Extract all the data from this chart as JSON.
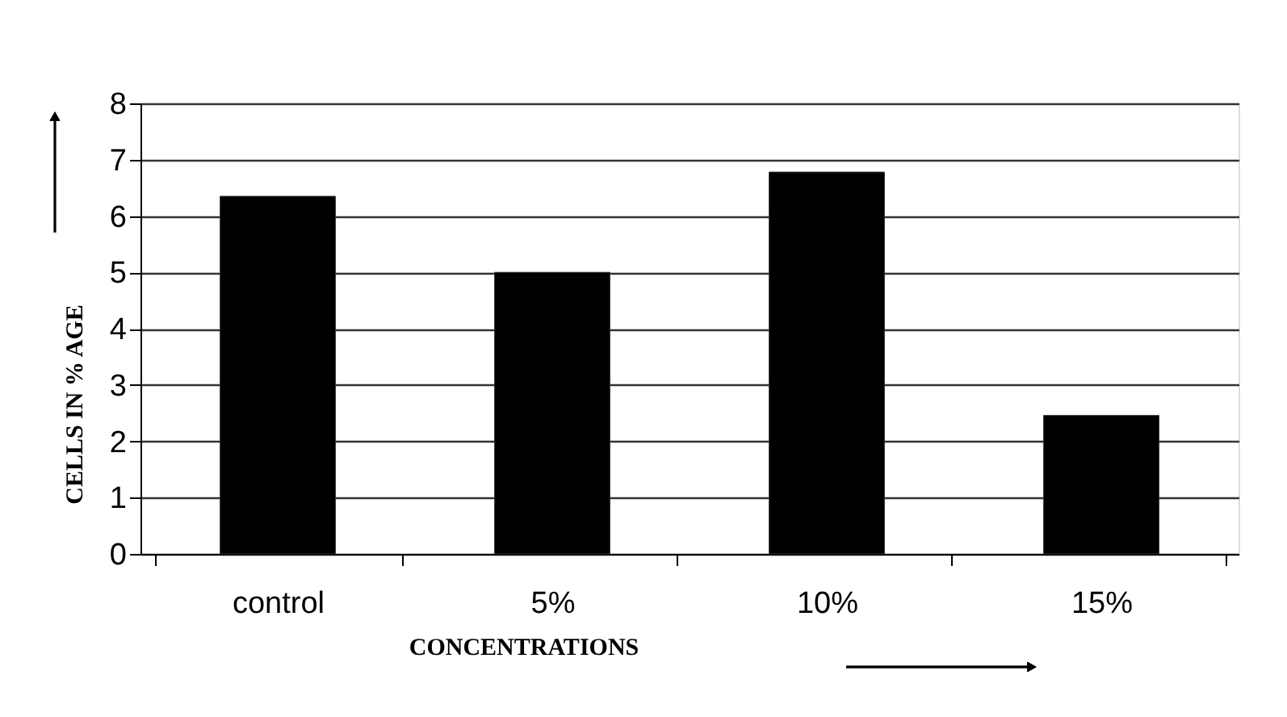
{
  "chart_data": {
    "type": "bar",
    "categories": [
      "control",
      "5%",
      "10%",
      "15%"
    ],
    "values": [
      6.35,
      5.0,
      6.78,
      2.46
    ],
    "color": "#000000",
    "xlabel": "CONCENTRATIONS",
    "ylabel": "CELLS IN % AGE",
    "ylim": [
      0,
      8
    ],
    "yticks": [
      0,
      1,
      2,
      3,
      4,
      5,
      6,
      7,
      8
    ],
    "grid": "y"
  }
}
